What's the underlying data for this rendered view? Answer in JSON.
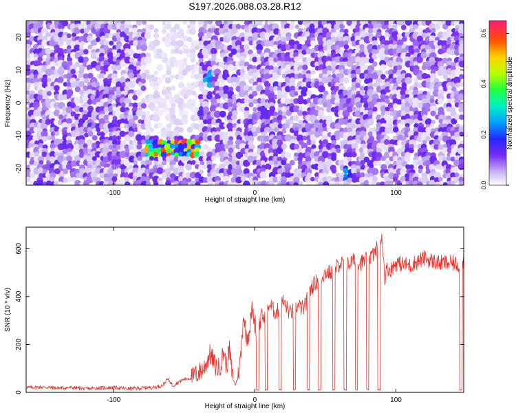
{
  "figure": {
    "title": "S197.2026.088.03.28.R12"
  },
  "chart_data": [
    {
      "type": "heatmap",
      "xlabel": "Height of straight line (km)",
      "ylabel": "Frequency (Hz)",
      "xlim": [
        -162,
        148
      ],
      "ylim": [
        -25,
        25
      ],
      "x_ticks": [
        -100,
        0,
        100
      ],
      "y_ticks": [
        -20,
        -10,
        0,
        10,
        20
      ],
      "colorbar": {
        "label": "Normalized spectral amplitude",
        "range": [
          0,
          0.65
        ],
        "ticks": [
          0.0,
          0.2,
          0.4,
          0.6
        ],
        "colormap": [
          "#ffffff",
          "#d8c8f4",
          "#9a4ff0",
          "#5a10e8",
          "#2030ff",
          "#00c8ff",
          "#00ff80",
          "#c8ff00",
          "#ff8000",
          "#ff1040",
          "#ff2080"
        ]
      },
      "features": [
        {
          "label": "strong band",
          "x_range": [
            -78,
            -38
          ],
          "y_range": [
            -17,
            -12
          ],
          "max_value": 0.62
        },
        {
          "label": "gap",
          "x_range": [
            -78,
            -38
          ],
          "y_range": [
            -10,
            25
          ],
          "max_value": 0.02
        },
        {
          "label": "spot",
          "x": -32,
          "y": 7,
          "max_value": 0.3
        },
        {
          "label": "spot",
          "x": 65,
          "y": -21,
          "max_value": 0.25
        }
      ]
    },
    {
      "type": "line",
      "xlabel": "Height of straight line (km)",
      "ylabel": "SNR (10 * v/v)",
      "xlim": [
        -162,
        148
      ],
      "ylim": [
        0,
        690
      ],
      "x_ticks": [
        -100,
        0,
        100
      ],
      "y_ticks": [
        0,
        200,
        400,
        600
      ],
      "color": "#e8312a",
      "series": [
        {
          "x": [
            -162,
            -150,
            -140,
            -130,
            -120,
            -110,
            -100,
            -90,
            -80,
            -70,
            -65,
            -62,
            -60,
            -58,
            -55,
            -50,
            -45,
            -40,
            -35,
            -32,
            -30,
            -28,
            -26,
            -24,
            -22,
            -20,
            -18,
            -16,
            -14,
            -12,
            -10,
            -8,
            -6,
            -4,
            -2,
            0,
            2,
            5,
            8,
            10,
            15,
            20,
            25,
            30,
            35,
            40,
            45,
            50,
            55,
            60,
            65,
            70,
            75,
            80,
            85,
            88,
            90,
            92,
            94,
            96,
            100,
            110,
            120,
            130,
            140,
            145,
            148
          ],
          "y": [
            20,
            22,
            18,
            20,
            15,
            18,
            20,
            15,
            18,
            22,
            30,
            55,
            45,
            28,
            40,
            55,
            60,
            80,
            110,
            160,
            140,
            110,
            100,
            120,
            175,
            105,
            180,
            70,
            30,
            60,
            150,
            330,
            230,
            250,
            350,
            290,
            260,
            320,
            300,
            370,
            330,
            380,
            330,
            360,
            350,
            440,
            470,
            500,
            500,
            540,
            530,
            550,
            540,
            560,
            580,
            620,
            660,
            480,
            520,
            510,
            540,
            530,
            560,
            540,
            540,
            530,
            540
          ],
          "dropouts_x": [
            2,
            8,
            18,
            28,
            38,
            46,
            56,
            64,
            72,
            80,
            88,
            146
          ]
        }
      ]
    }
  ]
}
